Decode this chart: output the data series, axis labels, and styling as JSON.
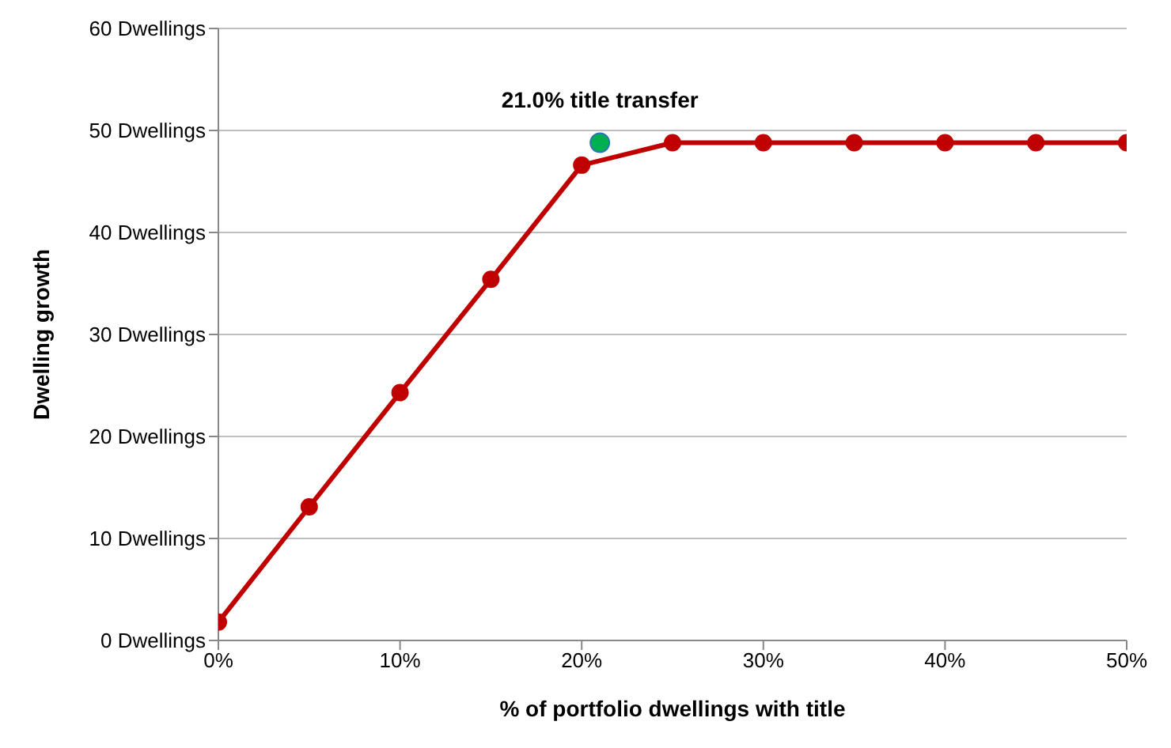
{
  "chart_data": {
    "type": "line",
    "xlabel": "% of portfolio dwellings with title",
    "ylabel": "Dwelling growth",
    "xlim": [
      0,
      50
    ],
    "xticks": [
      {
        "value": 0,
        "label": "0%"
      },
      {
        "value": 10,
        "label": "10%"
      },
      {
        "value": 20,
        "label": "20%"
      },
      {
        "value": 30,
        "label": "30%"
      },
      {
        "value": 40,
        "label": "40%"
      },
      {
        "value": 50,
        "label": "50%"
      }
    ],
    "ylim": [
      0,
      60
    ],
    "yticks": [
      {
        "value": 0,
        "label": "0 Dwellings"
      },
      {
        "value": 10,
        "label": "10 Dwellings"
      },
      {
        "value": 20,
        "label": "20 Dwellings"
      },
      {
        "value": 30,
        "label": "30 Dwellings"
      },
      {
        "value": 40,
        "label": "40 Dwellings"
      },
      {
        "value": 50,
        "label": "50 Dwellings"
      },
      {
        "value": 60,
        "label": "60 Dwellings"
      }
    ],
    "grid": "y",
    "marker": "circle",
    "series": [
      {
        "color": "#c00000",
        "x": [
          0,
          5,
          10,
          15,
          20,
          25,
          30,
          35,
          40,
          45,
          50
        ],
        "values": [
          1.8,
          13.1,
          24.3,
          35.4,
          46.6,
          48.8,
          48.8,
          48.8,
          48.8,
          48.8,
          48.8
        ]
      },
      {
        "type": "scatter",
        "color": "#00b050",
        "x": [
          21
        ],
        "values": [
          48.8
        ]
      }
    ],
    "annotations": [
      {
        "text": "21.0% title transfer",
        "x": 21,
        "y": 48.8
      }
    ]
  }
}
